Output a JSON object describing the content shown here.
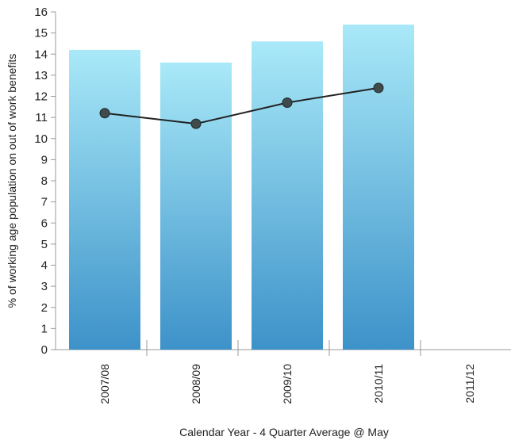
{
  "chart_data": {
    "type": "bar",
    "categories": [
      "2007/08",
      "2008/09",
      "2009/10",
      "2010/11",
      "2011/12"
    ],
    "series": [
      {
        "type": "bar",
        "values": [
          14.2,
          13.6,
          14.6,
          15.4,
          null
        ]
      },
      {
        "type": "line",
        "values": [
          11.2,
          10.7,
          11.7,
          12.4,
          null
        ]
      }
    ],
    "xlabel": "Calendar Year - 4 Quarter Average @ May",
    "ylabel": "% of working age population  on out of work benefits",
    "ylim": [
      0,
      16
    ],
    "yticks": [
      0,
      1,
      2,
      3,
      4,
      5,
      6,
      7,
      8,
      9,
      10,
      11,
      12,
      13,
      14,
      15,
      16
    ],
    "grid": false,
    "legend": "none",
    "colors": {
      "bar_top": "#a9e9f8",
      "bar_bottom": "#3d92c9",
      "line": "#222222",
      "marker": "#3e4a4c",
      "axis": "#999999"
    }
  }
}
